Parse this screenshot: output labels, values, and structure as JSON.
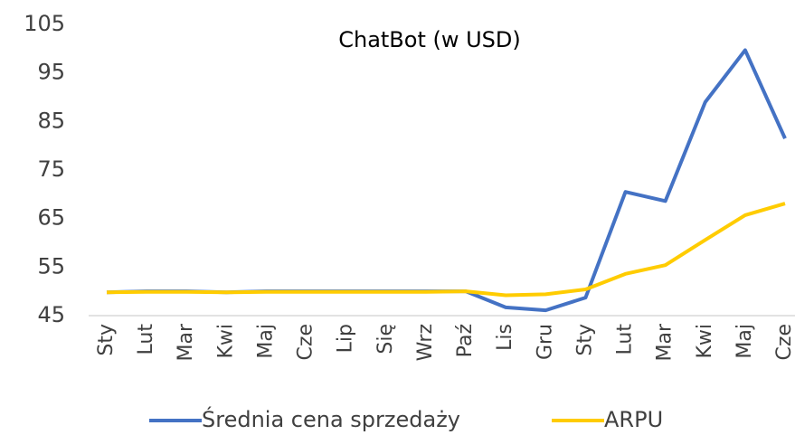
{
  "chart_data": {
    "type": "line",
    "title": "ChatBot (w USD)",
    "categories": [
      "Sty",
      "Lut",
      "Mar",
      "Kwi",
      "Maj",
      "Cze",
      "Lip",
      "Się",
      "Wrz",
      "Paź",
      "Lis",
      "Gru",
      "Sty",
      "Lut",
      "Mar",
      "Kwi",
      "Maj",
      "Cze"
    ],
    "series": [
      {
        "name": "Średnia cena sprzedaży",
        "color": "#4472c4",
        "values": [
          49.8,
          50,
          50,
          49.8,
          50,
          50,
          50,
          50,
          50,
          50,
          46.7,
          46.1,
          48.7,
          70.5,
          68.6,
          89,
          99.7,
          81.5
        ]
      },
      {
        "name": "ARPU",
        "color": "#ffcc00",
        "values": [
          49.8,
          49.9,
          49.9,
          49.8,
          49.9,
          49.9,
          49.9,
          49.9,
          49.9,
          50,
          49.2,
          49.4,
          50.4,
          53.6,
          55.4,
          60.6,
          65.7,
          68.1
        ]
      }
    ],
    "ylim": [
      45,
      105
    ],
    "yticks": [
      45,
      55,
      65,
      75,
      85,
      95,
      105
    ],
    "grid": false,
    "legend": "bottom"
  }
}
